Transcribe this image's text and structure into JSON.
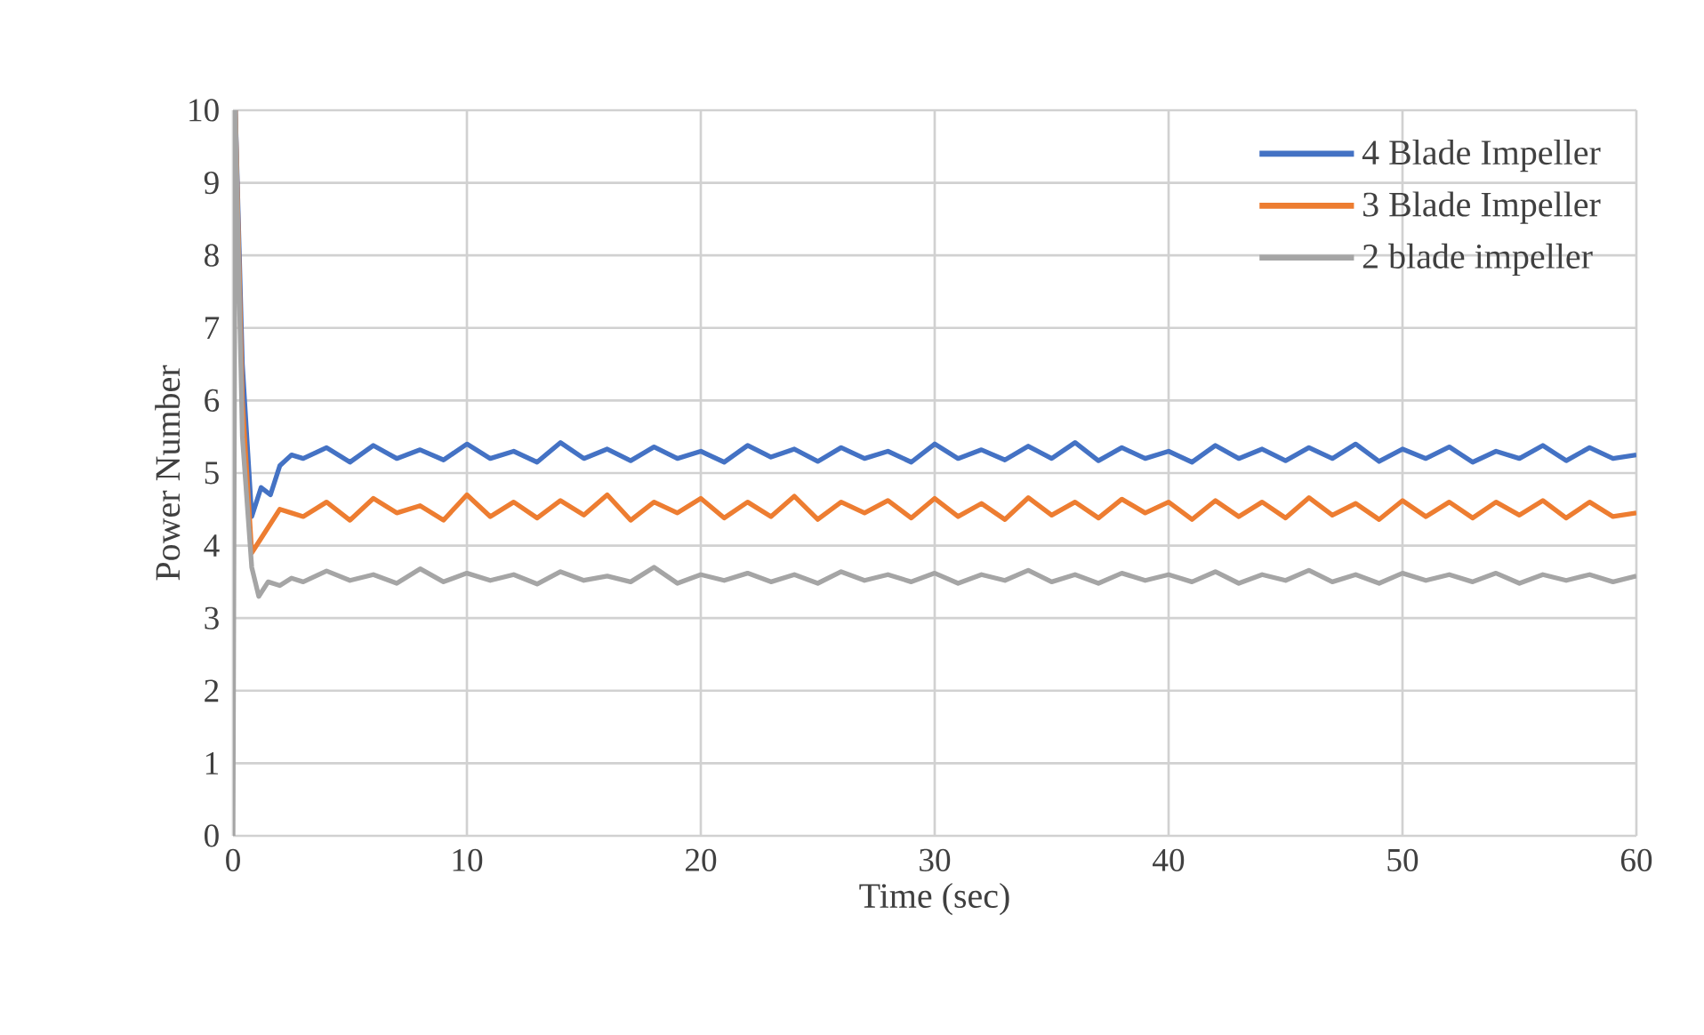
{
  "chart_data": {
    "type": "line",
    "xlabel": "Time (sec)",
    "ylabel": "Power Number",
    "xlim": [
      0,
      60
    ],
    "ylim": [
      0,
      10
    ],
    "xticks": [
      0,
      10,
      20,
      30,
      40,
      50,
      60
    ],
    "yticks": [
      0,
      1,
      2,
      3,
      4,
      5,
      6,
      7,
      8,
      9,
      10
    ],
    "grid": true,
    "legend": "top right",
    "marker": "none",
    "line_style": "solid",
    "series": [
      {
        "name": "4 Blade Impeller",
        "color": "#4472c4",
        "x": [
          0.1,
          0.4,
          0.8,
          1.2,
          1.6,
          2,
          2.5,
          3,
          4,
          5,
          6,
          7,
          8,
          9,
          10,
          11,
          12,
          13,
          14,
          15,
          16,
          17,
          18,
          19,
          20,
          21,
          22,
          23,
          24,
          25,
          26,
          27,
          28,
          29,
          30,
          31,
          32,
          33,
          34,
          35,
          36,
          37,
          38,
          39,
          40,
          41,
          42,
          43,
          44,
          45,
          46,
          47,
          48,
          49,
          50,
          51,
          52,
          53,
          54,
          55,
          56,
          57,
          58,
          59,
          60
        ],
        "values": [
          10,
          6.5,
          4.4,
          4.8,
          4.7,
          5.1,
          5.25,
          5.2,
          5.35,
          5.15,
          5.38,
          5.2,
          5.32,
          5.18,
          5.4,
          5.2,
          5.3,
          5.15,
          5.42,
          5.2,
          5.33,
          5.17,
          5.36,
          5.2,
          5.3,
          5.15,
          5.38,
          5.22,
          5.33,
          5.16,
          5.35,
          5.2,
          5.3,
          5.15,
          5.4,
          5.2,
          5.32,
          5.18,
          5.37,
          5.2,
          5.42,
          5.17,
          5.35,
          5.2,
          5.3,
          5.15,
          5.38,
          5.2,
          5.33,
          5.17,
          5.35,
          5.2,
          5.4,
          5.16,
          5.33,
          5.2,
          5.36,
          5.15,
          5.3,
          5.2,
          5.38,
          5.17,
          5.35,
          5.2,
          5.25
        ]
      },
      {
        "name": "3 Blade Impeller",
        "color": "#ed7d31",
        "x": [
          0.1,
          0.4,
          0.8,
          1.2,
          1.6,
          2,
          2.5,
          3,
          4,
          5,
          6,
          7,
          8,
          9,
          10,
          11,
          12,
          13,
          14,
          15,
          16,
          17,
          18,
          19,
          20,
          21,
          22,
          23,
          24,
          25,
          26,
          27,
          28,
          29,
          30,
          31,
          32,
          33,
          34,
          35,
          36,
          37,
          38,
          39,
          40,
          41,
          42,
          43,
          44,
          45,
          46,
          47,
          48,
          49,
          50,
          51,
          52,
          53,
          54,
          55,
          56,
          57,
          58,
          59,
          60
        ],
        "values": [
          10,
          6,
          3.9,
          4.1,
          4.3,
          4.5,
          4.45,
          4.4,
          4.6,
          4.35,
          4.65,
          4.45,
          4.55,
          4.35,
          4.7,
          4.4,
          4.6,
          4.38,
          4.62,
          4.42,
          4.7,
          4.35,
          4.6,
          4.45,
          4.65,
          4.38,
          4.6,
          4.4,
          4.68,
          4.36,
          4.6,
          4.45,
          4.62,
          4.38,
          4.65,
          4.4,
          4.58,
          4.36,
          4.66,
          4.42,
          4.6,
          4.38,
          4.64,
          4.45,
          4.6,
          4.36,
          4.62,
          4.4,
          4.6,
          4.38,
          4.66,
          4.42,
          4.58,
          4.36,
          4.62,
          4.4,
          4.6,
          4.38,
          4.6,
          4.42,
          4.62,
          4.38,
          4.6,
          4.4,
          4.45
        ]
      },
      {
        "name": "2 blade impeller",
        "color": "#a5a5a5",
        "x": [
          0,
          0.1,
          0.4,
          0.8,
          1.1,
          1.5,
          2,
          2.5,
          3,
          4,
          5,
          6,
          7,
          8,
          9,
          10,
          11,
          12,
          13,
          14,
          15,
          16,
          17,
          18,
          19,
          20,
          21,
          22,
          23,
          24,
          25,
          26,
          27,
          28,
          29,
          30,
          31,
          32,
          33,
          34,
          35,
          36,
          37,
          38,
          39,
          40,
          41,
          42,
          43,
          44,
          45,
          46,
          47,
          48,
          49,
          50,
          51,
          52,
          53,
          54,
          55,
          56,
          57,
          58,
          59,
          60
        ],
        "values": [
          0,
          10,
          5.5,
          3.7,
          3.3,
          3.5,
          3.45,
          3.55,
          3.5,
          3.65,
          3.52,
          3.6,
          3.48,
          3.68,
          3.5,
          3.62,
          3.52,
          3.6,
          3.47,
          3.64,
          3.52,
          3.58,
          3.5,
          3.7,
          3.48,
          3.6,
          3.52,
          3.62,
          3.5,
          3.6,
          3.48,
          3.64,
          3.52,
          3.6,
          3.5,
          3.62,
          3.48,
          3.6,
          3.52,
          3.66,
          3.5,
          3.6,
          3.48,
          3.62,
          3.52,
          3.6,
          3.5,
          3.64,
          3.48,
          3.6,
          3.52,
          3.66,
          3.5,
          3.6,
          3.48,
          3.62,
          3.52,
          3.6,
          3.5,
          3.62,
          3.48,
          3.6,
          3.52,
          3.6,
          3.5,
          3.58
        ]
      }
    ]
  }
}
